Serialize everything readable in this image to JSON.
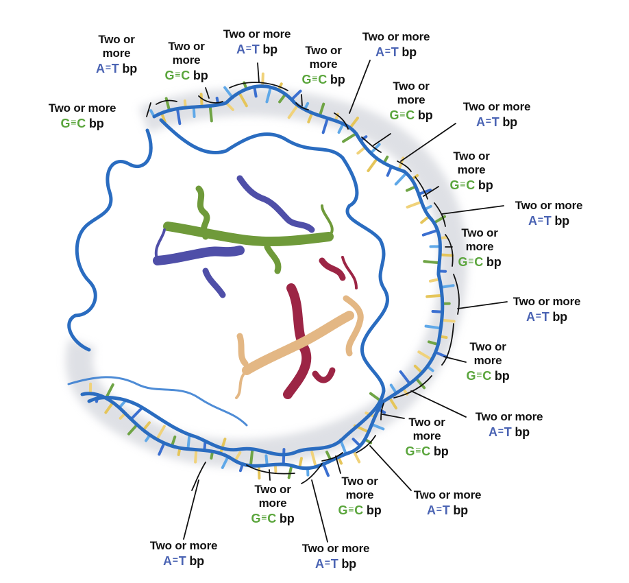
{
  "colors": {
    "dna_backbone": "#2a6cc0",
    "at_pair": "#4a63b3",
    "gc_pair": "#5aa53c",
    "protein_green": "#6f9a3a",
    "protein_blue": "#4f4fa8",
    "protein_red": "#9c2545",
    "protein_tan": "#e3b784"
  },
  "labels": [
    {
      "id": "t1",
      "lines": [
        "Two or",
        "more"
      ],
      "pair": "A",
      "bond": "=",
      "pair2": "T",
      "bp": "bp",
      "kind": "at"
    },
    {
      "id": "t2",
      "lines": [
        "Two or",
        "more"
      ],
      "pair": "G",
      "bond": "≡",
      "pair2": "C",
      "bp": "bp",
      "kind": "gc"
    },
    {
      "id": "t3",
      "lines": [
        "Two or more"
      ],
      "pair": "A",
      "bond": "=",
      "pair2": "T",
      "bp": "bp",
      "kind": "at"
    },
    {
      "id": "t4",
      "lines": [
        "Two or",
        "more"
      ],
      "pair": "G",
      "bond": "≡",
      "pair2": "C",
      "bp": "bp",
      "kind": "gc"
    },
    {
      "id": "t5",
      "lines": [
        "Two or more"
      ],
      "pair": "A",
      "bond": "=",
      "pair2": "T",
      "bp": "bp",
      "kind": "at"
    },
    {
      "id": "l1",
      "lines": [
        "Two or more"
      ],
      "pair": "G",
      "bond": "≡",
      "pair2": "C",
      "bp": "bp",
      "kind": "gc"
    },
    {
      "id": "r1",
      "lines": [
        "Two or",
        "more"
      ],
      "pair": "G",
      "bond": "≡",
      "pair2": "C",
      "bp": "bp",
      "kind": "gc"
    },
    {
      "id": "r2",
      "lines": [
        "Two or more"
      ],
      "pair": "A",
      "bond": "=",
      "pair2": "T",
      "bp": "bp",
      "kind": "at"
    },
    {
      "id": "r3",
      "lines": [
        "Two or",
        "more"
      ],
      "pair": "G",
      "bond": "≡",
      "pair2": "C",
      "bp": "bp",
      "kind": "gc"
    },
    {
      "id": "r4",
      "lines": [
        "Two or more"
      ],
      "pair": "A",
      "bond": "=",
      "pair2": "T",
      "bp": "bp",
      "kind": "at"
    },
    {
      "id": "r5",
      "lines": [
        "Two or",
        "more"
      ],
      "pair": "G",
      "bond": "≡",
      "pair2": "C",
      "bp": "bp",
      "kind": "gc"
    },
    {
      "id": "r6",
      "lines": [
        "Two or more"
      ],
      "pair": "A",
      "bond": "=",
      "pair2": "T",
      "bp": "bp",
      "kind": "at"
    },
    {
      "id": "r7",
      "lines": [
        "Two or",
        "more"
      ],
      "pair": "G",
      "bond": "≡",
      "pair2": "C",
      "bp": "bp",
      "kind": "gc"
    },
    {
      "id": "r8",
      "lines": [
        "Two or more"
      ],
      "pair": "A",
      "bond": "=",
      "pair2": "T",
      "bp": "bp",
      "kind": "at"
    },
    {
      "id": "r9",
      "lines": [
        "Two or",
        "more"
      ],
      "pair": "G",
      "bond": "≡",
      "pair2": "C",
      "bp": "bp",
      "kind": "gc"
    },
    {
      "id": "r10",
      "lines": [
        "Two or more"
      ],
      "pair": "A",
      "bond": "=",
      "pair2": "T",
      "bp": "bp",
      "kind": "at"
    },
    {
      "id": "b1",
      "lines": [
        "Two or",
        "more"
      ],
      "pair": "G",
      "bond": "≡",
      "pair2": "C",
      "bp": "bp",
      "kind": "gc"
    },
    {
      "id": "b2",
      "lines": [
        "Two or",
        "more"
      ],
      "pair": "G",
      "bond": "≡",
      "pair2": "C",
      "bp": "bp",
      "kind": "gc"
    },
    {
      "id": "b3",
      "lines": [
        "Two or more"
      ],
      "pair": "A",
      "bond": "=",
      "pair2": "T",
      "bp": "bp",
      "kind": "at"
    },
    {
      "id": "b4",
      "lines": [
        "Two or more"
      ],
      "pair": "A",
      "bond": "=",
      "pair2": "T",
      "bp": "bp",
      "kind": "at"
    }
  ]
}
